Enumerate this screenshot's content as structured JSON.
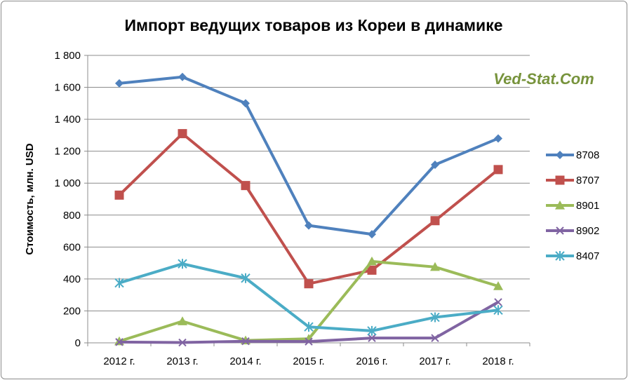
{
  "chart_data": {
    "type": "line",
    "title": "Импорт ведущих товаров из Кореи в динамике",
    "ylabel": "Стоимость, млн. USD",
    "xlabel": "",
    "categories": [
      "2012 г.",
      "2013 г.",
      "2014 г.",
      "2015 г.",
      "2016 г.",
      "2017 г.",
      "2018 г."
    ],
    "ylim": [
      0,
      1800
    ],
    "yticks": [
      0,
      200,
      400,
      600,
      800,
      1000,
      1200,
      1400,
      1600,
      1800
    ],
    "ytick_labels": [
      "0",
      "200",
      "400",
      "600",
      "800",
      "1 000",
      "1 200",
      "1 400",
      "1 600",
      "1 800"
    ],
    "grid": true,
    "legend": "right",
    "series": [
      {
        "name": "8708",
        "color": "#4f81bd",
        "marker": "diamond",
        "values": [
          1625,
          1665,
          1500,
          735,
          680,
          1115,
          1280
        ]
      },
      {
        "name": "8707",
        "color": "#c0504d",
        "marker": "square",
        "values": [
          925,
          1310,
          985,
          370,
          455,
          765,
          1085
        ]
      },
      {
        "name": "8901",
        "color": "#9bbb59",
        "marker": "triangle",
        "values": [
          10,
          135,
          15,
          25,
          510,
          475,
          355
        ]
      },
      {
        "name": "8902",
        "color": "#8064a2",
        "marker": "x",
        "values": [
          5,
          2,
          10,
          8,
          30,
          30,
          255
        ]
      },
      {
        "name": "8407",
        "color": "#4bacc6",
        "marker": "star",
        "values": [
          375,
          495,
          405,
          100,
          75,
          160,
          205
        ]
      }
    ]
  },
  "watermark": "Ved-Stat.Com"
}
